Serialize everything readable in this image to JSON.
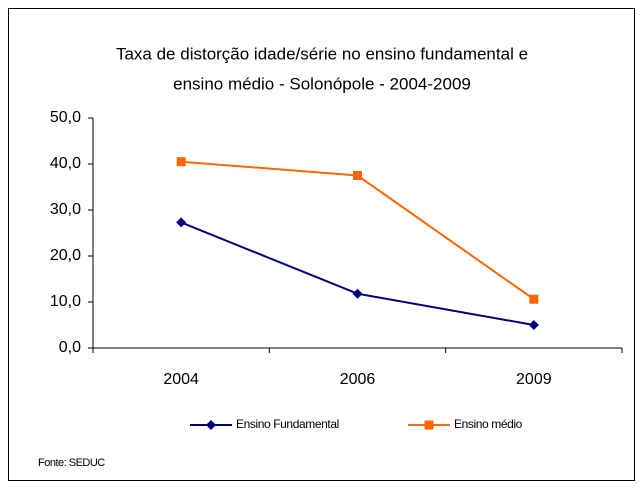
{
  "chart_data": {
    "type": "line",
    "title": [
      "Taxa de distorção idade/série no ensino fundamental e",
      "ensino médio - Solonópole -  2004-2009"
    ],
    "categories": [
      "2004",
      "2006",
      "2009"
    ],
    "series": [
      {
        "name": "Ensino Fundamental",
        "color": "#000080",
        "marker": "diamond",
        "values": [
          27.3,
          11.8,
          5.0
        ]
      },
      {
        "name": "Ensino médio",
        "color": "#ff6600",
        "marker": "square",
        "values": [
          40.5,
          37.5,
          10.6
        ]
      }
    ],
    "ylim": [
      0,
      50
    ],
    "yticks": [
      {
        "value": 0,
        "label": "0,0"
      },
      {
        "value": 10,
        "label": "10,0"
      },
      {
        "value": 20,
        "label": "20,0"
      },
      {
        "value": 30,
        "label": "30,0"
      },
      {
        "value": 40,
        "label": "40,0"
      },
      {
        "value": 50,
        "label": "50,0"
      }
    ],
    "legend": "bottom",
    "source": "Fonte: SEDUC"
  }
}
